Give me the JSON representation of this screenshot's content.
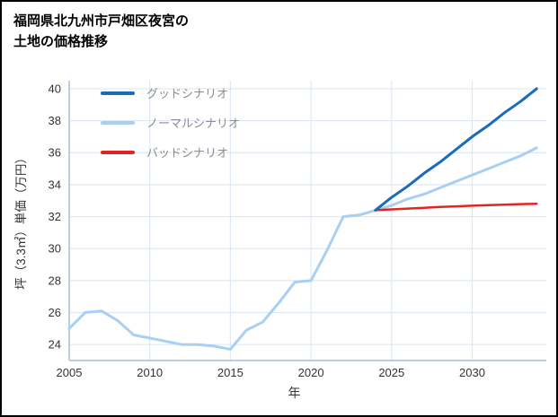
{
  "title": {
    "line1": "福岡県北九州市戸畑区夜宮の",
    "line2": "土地の価格推移"
  },
  "legend": [
    {
      "label": "グッドシナリオ",
      "color": "#1b6cb8"
    },
    {
      "label": "ノーマルシナリオ",
      "color": "#a9cff2"
    },
    {
      "label": "バッドシナリオ",
      "color": "#e02424"
    }
  ],
  "chart_data": {
    "type": "line",
    "title": "福岡県北九州市戸畑区夜宮の土地の価格推移",
    "xlabel": "年",
    "ylabel": "坪（3.3㎡）単価（万円）",
    "xlim": [
      2005,
      2034.6
    ],
    "ylim": [
      23,
      40.5
    ],
    "x_ticks": [
      2005,
      2010,
      2015,
      2020,
      2025,
      2030
    ],
    "y_ticks": [
      24,
      26,
      28,
      30,
      32,
      34,
      36,
      38,
      40
    ],
    "grid": true,
    "legend_position": "upper-left",
    "axis_color": "#b7cfe6",
    "grid_color": "#dde8f4",
    "tick_color": "#333333",
    "series": [
      {
        "id": "normal",
        "name": "ノーマルシナリオ",
        "color": "#a9cff2",
        "width": 3,
        "x": [
          2005,
          2006,
          2007,
          2008,
          2009,
          2010,
          2011,
          2012,
          2013,
          2014,
          2015,
          2016,
          2017,
          2018,
          2019,
          2020,
          2021,
          2022,
          2023,
          2024,
          2025,
          2026,
          2027,
          2028,
          2029,
          2030,
          2031,
          2032,
          2033,
          2034
        ],
        "y": [
          25.0,
          26.0,
          26.1,
          25.5,
          24.6,
          24.4,
          24.2,
          24.0,
          24.0,
          23.9,
          23.7,
          24.9,
          25.4,
          26.6,
          27.9,
          28.0,
          29.9,
          32.0,
          32.1,
          32.4,
          32.7,
          33.1,
          33.4,
          33.8,
          34.2,
          34.6,
          35.0,
          35.4,
          35.8,
          36.3
        ]
      },
      {
        "id": "bad",
        "name": "バッドシナリオ",
        "color": "#e02424",
        "width": 2.5,
        "x": [
          2024,
          2025,
          2026,
          2027,
          2028,
          2029,
          2030,
          2031,
          2032,
          2033,
          2034
        ],
        "y": [
          32.4,
          32.45,
          32.5,
          32.55,
          32.6,
          32.64,
          32.68,
          32.72,
          32.75,
          32.78,
          32.8
        ]
      },
      {
        "id": "good",
        "name": "グッドシナリオ",
        "color": "#1b6cb8",
        "width": 3,
        "x": [
          2024,
          2025,
          2026,
          2027,
          2028,
          2029,
          2030,
          2031,
          2032,
          2033,
          2034
        ],
        "y": [
          32.4,
          33.2,
          33.9,
          34.7,
          35.4,
          36.2,
          37.0,
          37.7,
          38.5,
          39.2,
          40.0
        ]
      }
    ]
  }
}
